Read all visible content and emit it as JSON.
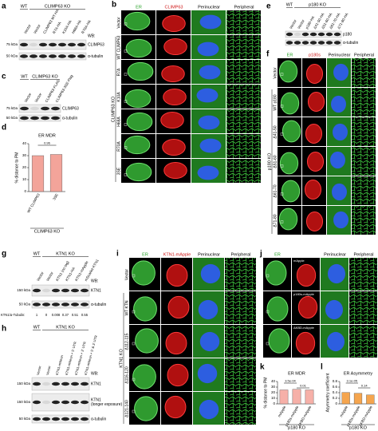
{
  "a": {
    "label": "a",
    "group_wt": "WT",
    "group_ko": "CLIMP63 KO",
    "lanes": [
      "Vector",
      "Vector",
      "CLIMP63 WT-HA",
      "R7A-HA",
      "K10A-HA",
      "H68A-HA",
      "R70A-HA"
    ],
    "wb": "WB:",
    "markers": [
      "75 kDa",
      "50 kDa"
    ],
    "blots": [
      [
        "CLIMP63"
      ],
      [
        "α-tubulin"
      ]
    ]
  },
  "b": {
    "label": "b",
    "columns": [
      "ER",
      "CLIMP63",
      "Perinuclear",
      "Peripheral"
    ],
    "rows": [
      "Vector",
      "WT CLIMP63",
      "R7A",
      "K10A",
      "H68A",
      "R70A",
      "3SE"
    ],
    "group": "CLIMP63 KO"
  },
  "c": {
    "label": "c",
    "group_wt": "WT",
    "group_ko": "CLIMP63 KO",
    "lanes": [
      "Vector",
      "Vector",
      "CLIMP63-FLAG",
      "CLIMP63-3SE-Flag"
    ],
    "markers": [
      "75 kDa",
      "50 kDa"
    ],
    "blots": [
      [
        "CLIMP63"
      ],
      [
        "α-tubulin"
      ]
    ]
  },
  "d": {
    "label": "d",
    "chart": {
      "type": "bar",
      "title": "ER MDR",
      "ylabel": "% distance to PM",
      "categories": [
        "WT CLIMP63",
        "3SE"
      ],
      "values": [
        30,
        31
      ],
      "color": "#f3a49a",
      "ylim": [
        0,
        40
      ],
      "yticks": [
        0,
        10,
        20,
        30,
        40
      ],
      "p_values": [
        "0.96"
      ],
      "group": "CLIMP63 KO"
    }
  },
  "e": {
    "label": "e",
    "group_wt": "WT",
    "group_ko": "p180 KO",
    "lanes": [
      "Vector",
      "Vector",
      "p180-HA",
      "Δ41-50-HA",
      "Δ51-60-HA",
      "Δ61-70-HA",
      "Δ71-80-HA"
    ],
    "blots": [
      [
        "p180"
      ],
      [
        "α-tubulin"
      ]
    ]
  },
  "f": {
    "label": "f",
    "columns": [
      "ER",
      "p180s",
      "Perinuclear",
      "Peripheral"
    ],
    "rows": [
      "Vector",
      "WT p180",
      "Δ41-50",
      "Δ51-60",
      "Δ61-70",
      "Δ71-80"
    ],
    "group": "p180 KO"
  },
  "g": {
    "label": "g",
    "group_wt": "WT",
    "group_ko": "KTN1 KO",
    "lanes": [
      "Vector",
      "Vector",
      "KTN1 (no tag)",
      "KTN1-HA",
      "KTN1-mApple",
      "mScarlet-KTN1"
    ],
    "wb": "WB:",
    "markers": [
      "150 kDa",
      "50 kDa"
    ],
    "blots": [
      [
        "KTN1"
      ],
      [
        "α-tubulin"
      ]
    ],
    "ratio_label": "KTN1/α-Tubulin:",
    "ratios": [
      1,
      0,
      0.008,
      0.37,
      0.51,
      0.55
    ]
  },
  "h": {
    "label": "h",
    "group_wt": "WT",
    "group_ko": "KTN1 KO",
    "lanes": [
      "Vector",
      "Vector",
      "KTN1-mNeon",
      "KTN1-mNeon + 5' UTR",
      "KTN1-mNeon + 3' UTR",
      "KTN1-mNeon + 5' & 3' UTR"
    ],
    "wb": "WB:",
    "markers": [
      "150 kDa",
      "150 kDa",
      "50 kDa"
    ],
    "blots": [
      [
        "KTN1"
      ],
      [
        "KTN1",
        "(longer exposure)"
      ],
      [
        "α-tubulin"
      ]
    ]
  },
  "i": {
    "label": "i",
    "columns": [
      "ER",
      "KTN1-mApple",
      "Perinuclear",
      "Peripheral"
    ],
    "rows": [
      "Vector",
      "WT KTN",
      "Δ112-115",
      "Δ116-120",
      "Δ121-140"
    ],
    "group": "KTN1 KO"
  },
  "j": {
    "label": "j",
    "columns": [
      "ER",
      "Perinuclear",
      "Peripheral"
    ],
    "rows": [
      "mApple",
      "p180s-mApple",
      "ΔKBD-mApple"
    ]
  },
  "k": {
    "label": "k",
    "chart": {
      "type": "bar",
      "title": "ER MDR",
      "ylabel": "% distance to PM",
      "categories": [
        "mApple",
        "p180s-mApple",
        "ΔKBD-mApple"
      ],
      "values": [
        25,
        26,
        25
      ],
      "color": "#f6b0a8",
      "ylim": [
        0,
        40
      ],
      "yticks": [
        0,
        10,
        20,
        30,
        40
      ],
      "p_values": [
        "3.5e-04",
        "0.01"
      ],
      "group": "p180 KO"
    }
  },
  "l": {
    "label": "l",
    "chart": {
      "type": "bar",
      "title": "ER Asymmetry",
      "ylabel": "Asymmetry coefficient",
      "categories": [
        "mApple",
        "p180s-mApple",
        "ΔKBD-mApple"
      ],
      "values": [
        0.41,
        0.38,
        0.32
      ],
      "color": "#f5a54e",
      "ylim": [
        0,
        0.8
      ],
      "yticks": [
        0,
        0.2,
        0.4,
        0.6,
        0.8
      ],
      "p_values": [
        "3.1e-05",
        "0.14"
      ],
      "group": "p180 KO"
    }
  }
}
